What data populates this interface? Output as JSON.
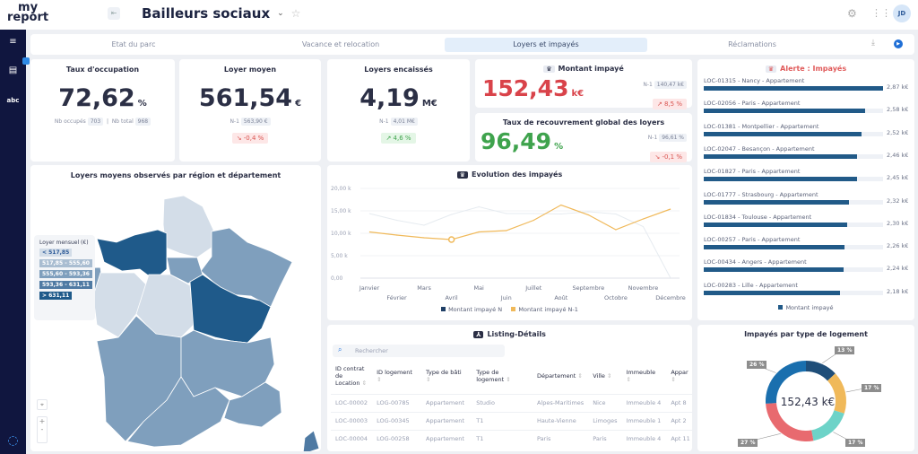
{
  "header": {
    "logo": "my report",
    "title": "Bailleurs sociaux",
    "avatar": "JD"
  },
  "tabs": [
    {
      "label": "Etat du parc"
    },
    {
      "label": "Vacance et relocation"
    },
    {
      "label": "Loyers et impayés",
      "active": true
    },
    {
      "label": "Réclamations"
    }
  ],
  "kpis": {
    "occupation": {
      "title": "Taux d'occupation",
      "value": "72,62",
      "unit": "%",
      "occ_label": "Nb occupés",
      "occ": "703",
      "total_label": "Nb total",
      "total": "968"
    },
    "loyer": {
      "title": "Loyer moyen",
      "value": "561,54",
      "unit": "€",
      "prev_label": "N-1",
      "prev": "563,90 €",
      "delta": "↘ -0,4 %"
    },
    "encaisses": {
      "title": "Loyers encaissés",
      "value": "4,19",
      "unit": "M€",
      "prev_label": "N-1",
      "prev": "4,01 M€",
      "delta": "↗ 4,6 %"
    },
    "impaye": {
      "title": "Montant impayé",
      "value": "152,43",
      "unit": "k€",
      "prev_label": "N-1",
      "prev": "140,47 k€",
      "delta": "↗ 8,5 %",
      "color": "#d9434a"
    },
    "recouvrement": {
      "title": "Taux de recouvrement global des loyers",
      "value": "96,49",
      "unit": "%",
      "prev_label": "N-1",
      "prev": "96,61 %",
      "delta": "↘ -0,1 %",
      "color": "#3fa34d"
    }
  },
  "alert": {
    "title": "Alerte : Impayés",
    "legend": "Montant impayé",
    "max": 2.87,
    "items": [
      {
        "label": "LOC-01315 - Nancy - Appartement",
        "value": 2.87,
        "text": "2,87 k€"
      },
      {
        "label": "LOC-02056 - Paris - Appartement",
        "value": 2.58,
        "text": "2,58 k€"
      },
      {
        "label": "LOC-01381 - Montpellier - Appartement",
        "value": 2.52,
        "text": "2,52 k€"
      },
      {
        "label": "LOC-02047 - Besançon - Appartement",
        "value": 2.46,
        "text": "2,46 k€"
      },
      {
        "label": "LOC-01827 - Paris - Appartement",
        "value": 2.45,
        "text": "2,45 k€"
      },
      {
        "label": "LOC-01777 - Strasbourg - Appartement",
        "value": 2.32,
        "text": "2,32 k€"
      },
      {
        "label": "LOC-01834 - Toulouse - Appartement",
        "value": 2.3,
        "text": "2,30 k€"
      },
      {
        "label": "LOC-00257 - Paris - Appartement",
        "value": 2.26,
        "text": "2,26 k€"
      },
      {
        "label": "LOC-00434 - Angers - Appartement",
        "value": 2.24,
        "text": "2,24 k€"
      },
      {
        "label": "LOC-00283 - Lille - Appartement",
        "value": 2.18,
        "text": "2,18 k€"
      }
    ]
  },
  "map": {
    "title": "Loyers moyens observés par région et département",
    "legend_title": "Loyer mensuel (€)",
    "legend": [
      {
        "label": "< 517,85",
        "color": "#d3dde8"
      },
      {
        "label": "517,85 - 555,60",
        "color": "#a9bdd1"
      },
      {
        "label": "555,60 - 593,36",
        "color": "#7f9fbd"
      },
      {
        "label": "593,36 - 631,11",
        "color": "#4f7aa3"
      },
      {
        "label": "> 631,11",
        "color": "#1f5a8a"
      }
    ],
    "zoom_in": "+",
    "zoom_out": "-"
  },
  "chart_data": {
    "type": "line",
    "title": "Evolution des impayés",
    "categories": [
      "Janvier",
      "Février",
      "Mars",
      "Avril",
      "Mai",
      "Juin",
      "Juillet",
      "Août",
      "Septembre",
      "Octobre",
      "Novembre",
      "Décembre"
    ],
    "yticks": [
      "0,00",
      "5,00 k",
      "10,00 k",
      "15,00 k",
      "20,00 k"
    ],
    "ylim": [
      0,
      20000
    ],
    "grid": true,
    "legend": "bottom",
    "series": [
      {
        "name": "Montant impayé N",
        "color": "#1f3f66",
        "values": [
          14400,
          12900,
          11800,
          14200,
          15900,
          14400,
          14400,
          14300,
          14800,
          14300,
          11500,
          0
        ]
      },
      {
        "name": "Montant impayé N-1",
        "color": "#f0b95a",
        "values": [
          10300,
          9600,
          9000,
          8600,
          10300,
          10600,
          12900,
          16300,
          14100,
          10800,
          13200,
          15400
        ]
      }
    ]
  },
  "listing": {
    "title": "Listing-Détails",
    "search_placeholder": "Rechercher",
    "columns": [
      "ID contrat de Location",
      "ID logement",
      "Type de bâti",
      "Type de logement",
      "Département",
      "Ville",
      "Immeuble",
      "Appar"
    ],
    "rows": [
      [
        "LOC-00002",
        "LOG-00785",
        "Appartement",
        "Studio",
        "Alpes-Maritimes",
        "Nice",
        "Immeuble 4",
        "Apt 8"
      ],
      [
        "LOC-00003",
        "LOG-00345",
        "Appartement",
        "T1",
        "Haute-Vienne",
        "Limoges",
        "Immeuble 1",
        "Apt 2"
      ],
      [
        "LOC-00004",
        "LOG-00258",
        "Appartement",
        "T1",
        "Paris",
        "Paris",
        "Immeuble 4",
        "Apt 11"
      ]
    ]
  },
  "donut": {
    "title": "Impayés par type de logement",
    "center": "152,43 k€",
    "slices": [
      {
        "value": 13,
        "label": "13 %",
        "color": "#1f4e79"
      },
      {
        "value": 17,
        "label": "17 %",
        "color": "#f0b95a"
      },
      {
        "value": 17,
        "label": "17 %",
        "color": "#6dd3c8"
      },
      {
        "value": 27,
        "label": "27 %",
        "color": "#e86a6f"
      },
      {
        "value": 26,
        "label": "26 %",
        "color": "#1a6fae"
      }
    ]
  }
}
